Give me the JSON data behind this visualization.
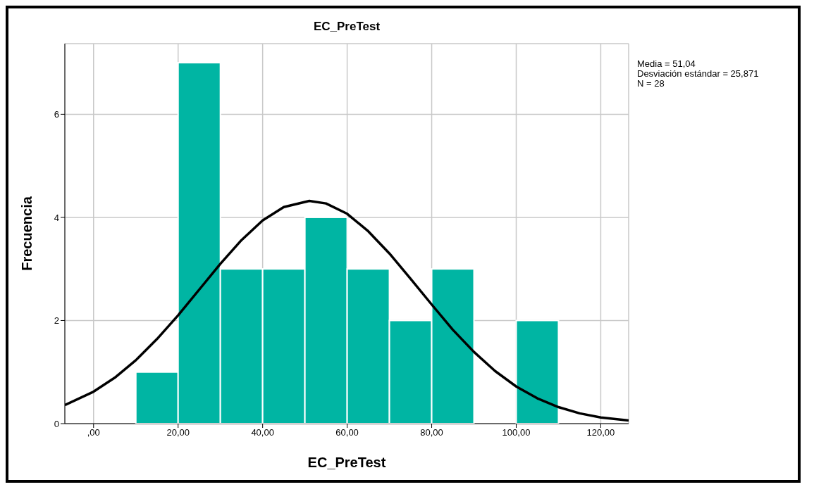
{
  "chart_data": {
    "type": "histogram",
    "title": "EC_PreTest",
    "xlabel": "EC_PreTest",
    "ylabel": "Frecuencia",
    "bins": [
      10,
      20,
      30,
      40,
      50,
      60,
      70,
      80,
      90,
      100,
      110
    ],
    "values": [
      1,
      7,
      3,
      3,
      4,
      3,
      2,
      3,
      0,
      2
    ],
    "color": "#00b5a3",
    "series": [
      {
        "type": "line",
        "color": "#000000",
        "x": [
          -6.8,
          0,
          5,
          10,
          15,
          20,
          25,
          30,
          35,
          40,
          45,
          51.04,
          55,
          60,
          65,
          70,
          75,
          80,
          85,
          90,
          95,
          100,
          105,
          110,
          115,
          120,
          126.6
        ],
        "values": [
          0.36,
          0.62,
          0.89,
          1.23,
          1.64,
          2.1,
          2.6,
          3.1,
          3.56,
          3.94,
          4.2,
          4.32,
          4.27,
          4.07,
          3.73,
          3.3,
          2.81,
          2.31,
          1.82,
          1.39,
          1.02,
          0.72,
          0.49,
          0.32,
          0.2,
          0.12,
          0.06
        ]
      }
    ],
    "xlim": [
      -6.8,
      126.6
    ],
    "xticks": [
      {
        "value": 0,
        "label": ",00"
      },
      {
        "value": 20,
        "label": "20,00"
      },
      {
        "value": 40,
        "label": "40,00"
      },
      {
        "value": 60,
        "label": "60,00"
      },
      {
        "value": 80,
        "label": "80,00"
      },
      {
        "value": 100,
        "label": "100,00"
      },
      {
        "value": 120,
        "label": "120,00"
      }
    ],
    "ylim": [
      0,
      7.37
    ],
    "yticks": [
      0,
      2,
      4,
      6
    ],
    "grid": true,
    "annotations": [
      "Media = 51,04",
      "Desviación estándar = 25,871",
      "N = 28"
    ]
  }
}
